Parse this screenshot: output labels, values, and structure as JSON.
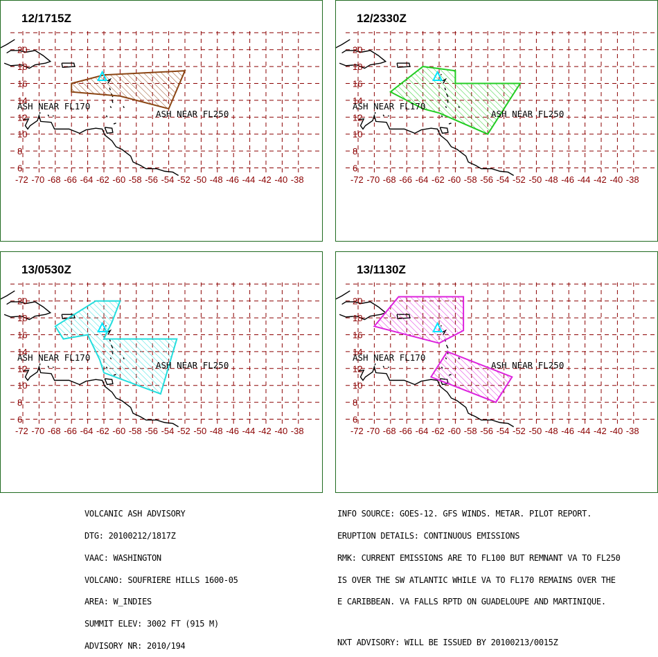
{
  "panels": [
    {
      "time": "12/1715Z",
      "cloud_color": "#8B4513",
      "polygons": [
        [
          [
            -66,
            16
          ],
          [
            -62,
            17
          ],
          [
            -52,
            17.5
          ],
          [
            -54,
            13
          ],
          [
            -60,
            14.5
          ],
          [
            -66,
            15
          ]
        ]
      ]
    },
    {
      "time": "12/2330Z",
      "cloud_color": "#22cc22",
      "polygons": [
        [
          [
            -68,
            15
          ],
          [
            -64,
            18
          ],
          [
            -60,
            17.5
          ],
          [
            -60,
            16
          ],
          [
            -52,
            16
          ],
          [
            -56,
            10
          ],
          [
            -62,
            12.5
          ],
          [
            -64,
            13
          ]
        ]
      ]
    },
    {
      "time": "13/0530Z",
      "cloud_color": "#22dddd",
      "polygons": [
        [
          [
            -68,
            17
          ],
          [
            -63,
            20
          ],
          [
            -60,
            20
          ],
          [
            -61,
            17.5
          ],
          [
            -62,
            15.5
          ],
          [
            -53,
            15.5
          ],
          [
            -55,
            9
          ],
          [
            -62,
            11.5
          ],
          [
            -62.5,
            13
          ],
          [
            -64,
            16
          ],
          [
            -67,
            15.5
          ]
        ]
      ]
    },
    {
      "time": "13/1130Z",
      "cloud_color": "#dd22dd",
      "polygons": [
        [
          [
            -70,
            17
          ],
          [
            -67,
            20.5
          ],
          [
            -59,
            20.5
          ],
          [
            -59,
            16.5
          ],
          [
            -62,
            15
          ],
          [
            -70,
            17
          ]
        ],
        [
          [
            -63,
            11
          ],
          [
            -55,
            8
          ],
          [
            -53,
            11
          ],
          [
            -61,
            14
          ]
        ]
      ]
    }
  ],
  "map": {
    "lat_ticks": [
      "6",
      "8",
      "10",
      "12",
      "14",
      "16",
      "18",
      "20"
    ],
    "lon_ticks": [
      "-72",
      "-70",
      "-68",
      "-66",
      "-64",
      "-62",
      "-60",
      "-58",
      "-56",
      "-54",
      "-52",
      "-50",
      "-48",
      "-46",
      "-44",
      "-42",
      "-40",
      "-38"
    ],
    "label_fl170": "ASH NEAR FL170",
    "label_fl250": "ASH NEAR FL250",
    "grid_color": "#8B0000",
    "land_color": "#000000"
  },
  "advisory": {
    "left": [
      "VOLCANIC ASH ADVISORY",
      "DTG: 20100212/1817Z",
      "VAAC: WASHINGTON",
      "VOLCANO: SOUFRIERE HILLS 1600-05",
      "AREA: W_INDIES",
      "SUMMIT ELEV: 3002 FT (915 M)",
      "ADVISORY NR: 2010/194"
    ],
    "right": [
      "INFO SOURCE: GOES-12. GFS WINDS. METAR. PILOT REPORT.",
      "ERUPTION DETAILS: CONTINUOUS EMISSIONS",
      "RMK: CURRENT EMISSIONS ARE TO FL100 BUT REMNANT VA TO FL250",
      "IS OVER THE SW ATLANTIC WHILE VA TO FL170 REMAINS OVER THE",
      "E CARIBBEAN. VA FALLS RPTD ON GUADELOUPE AND MARTINIQUE.",
      "",
      "NXT ADVISORY: WILL BE ISSUED BY 20100213/0015Z"
    ]
  }
}
